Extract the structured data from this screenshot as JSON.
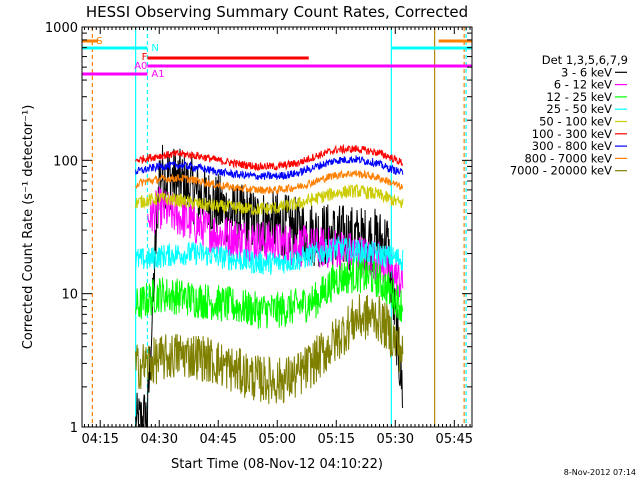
{
  "chart_data": {
    "type": "line",
    "title": "HESSI Observing Summary Count Rates, Corrected",
    "xlabel": "Start Time (08-Nov-12 04:10:22)",
    "ylabel": "Corrected Count Rate (s⁻¹ detector⁻¹)",
    "yscale": "log",
    "ylim": [
      1,
      1000
    ],
    "xlim": [
      "04:10:22",
      "05:49:30"
    ],
    "x_ticks": [
      "04:15",
      "04:30",
      "04:45",
      "05:00",
      "05:15",
      "05:30",
      "05:45"
    ],
    "y_ticks": [
      "1",
      "10",
      "100",
      "1000"
    ],
    "timestamp": "8-Nov-2012 07:14",
    "legend_title": "Det 1,3,5,6,7,9",
    "legend_position": "right-outside",
    "x": [
      "04:24",
      "04:27",
      "04:30",
      "04:35",
      "04:40",
      "04:45",
      "04:50",
      "04:55",
      "05:00",
      "05:05",
      "05:10",
      "05:15",
      "05:20",
      "05:25",
      "05:28",
      "05:32"
    ],
    "series": [
      {
        "name": "3 - 6 keV",
        "color": "#000000",
        "values": [
          1.0,
          1.2,
          80,
          70,
          55,
          45,
          38,
          35,
          33,
          30,
          28,
          27,
          26,
          25,
          24,
          1.7
        ]
      },
      {
        "name": "6 - 12 keV",
        "color": "#ff00ff",
        "values": [
          null,
          36,
          44,
          38,
          32,
          28,
          26,
          25,
          24,
          23,
          22,
          22,
          20,
          18,
          16,
          12
        ]
      },
      {
        "name": "12 - 25 keV",
        "color": "#00ff00",
        "values": [
          8,
          9,
          10,
          9.5,
          9,
          8.5,
          8,
          7.5,
          7.5,
          8,
          9,
          13,
          14,
          13,
          11,
          8
        ]
      },
      {
        "name": "25 - 50 keV",
        "color": "#00ffff",
        "values": [
          18,
          18,
          19,
          20,
          20,
          19,
          18,
          17,
          17,
          18,
          20,
          22,
          21,
          20,
          19,
          18
        ]
      },
      {
        "name": "50 - 100 keV",
        "color": "#cccc00",
        "values": [
          48,
          50,
          52,
          50,
          47,
          45,
          44,
          43,
          44,
          47,
          52,
          57,
          59,
          56,
          52,
          47
        ]
      },
      {
        "name": "100 - 300 keV",
        "color": "#ff0000",
        "values": [
          100,
          104,
          108,
          112,
          108,
          100,
          94,
          90,
          90,
          95,
          108,
          120,
          122,
          115,
          108,
          95
        ]
      },
      {
        "name": "300 - 800 keV",
        "color": "#0000ff",
        "values": [
          82,
          86,
          90,
          92,
          88,
          82,
          78,
          76,
          76,
          80,
          90,
          100,
          102,
          96,
          88,
          80
        ]
      },
      {
        "name": "800 - 7000 keV",
        "color": "#ff8000",
        "values": [
          66,
          70,
          72,
          74,
          70,
          65,
          62,
          60,
          60,
          63,
          70,
          78,
          80,
          75,
          70,
          62
        ]
      },
      {
        "name": "7000 - 20000 keV",
        "color": "#808000",
        "values": [
          2.8,
          3.0,
          3.2,
          3.5,
          3.4,
          3.0,
          2.6,
          2.3,
          2.2,
          2.4,
          3.2,
          4.5,
          6.5,
          6.8,
          5.5,
          3.5
        ]
      }
    ],
    "flags": [
      {
        "label": "S",
        "color": "#ff8000"
      },
      {
        "label": "N",
        "color": "#00ffff"
      },
      {
        "label": "F",
        "color": "#ff0000"
      },
      {
        "label": "A0",
        "color": "#ff00ff"
      },
      {
        "label": "A1",
        "color": "#ff00ff"
      }
    ]
  }
}
